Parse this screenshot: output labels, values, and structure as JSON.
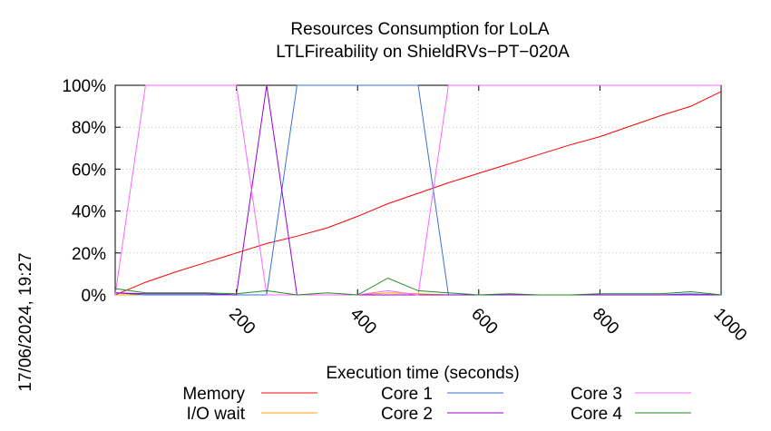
{
  "chart_data": {
    "type": "line",
    "title": [
      "Resources Consumption for LoLA",
      "LTLFireability on ShieldRVs−PT−020A"
    ],
    "xlabel": "Execution time (seconds)",
    "ylabel": "",
    "timestamp": "17/06/2024, 19:27",
    "xlim": [
      0,
      1000
    ],
    "ylim": [
      0,
      100
    ],
    "x_ticks": [
      200,
      400,
      600,
      800,
      1000
    ],
    "x_tick_labels": [
      "200",
      "400",
      "600",
      "800",
      "1000"
    ],
    "y_ticks": [
      0,
      20,
      40,
      60,
      80,
      100
    ],
    "y_tick_labels": [
      "0%",
      "20%",
      "40%",
      "60%",
      "80%",
      "100%"
    ],
    "grid": true,
    "legend_position": "bottom",
    "series": [
      {
        "name": "Memory",
        "color": "#ff0000",
        "x": [
          0,
          50,
          100,
          150,
          200,
          250,
          300,
          350,
          400,
          450,
          500,
          550,
          600,
          650,
          700,
          750,
          800,
          850,
          900,
          950,
          1000
        ],
        "y": [
          0,
          6,
          11,
          15.5,
          20,
          24.5,
          28,
          32,
          37.5,
          43.5,
          48.5,
          53.5,
          58,
          62.5,
          67,
          71.5,
          75.5,
          80.5,
          85.5,
          90,
          97
        ]
      },
      {
        "name": "I/O wait",
        "color": "#ffa500",
        "x": [
          0,
          50,
          100,
          150,
          200,
          250,
          300,
          350,
          400,
          450,
          500,
          550,
          600,
          650,
          700,
          750,
          800,
          850,
          900,
          950,
          1000
        ],
        "y": [
          0,
          0,
          0,
          0,
          0,
          0,
          0,
          0,
          0,
          1,
          0.5,
          0,
          0,
          0,
          0,
          0,
          0,
          0,
          0,
          0,
          0
        ]
      },
      {
        "name": "Core 1",
        "color": "#3a6fd6",
        "x": [
          0,
          50,
          100,
          150,
          200,
          250,
          300,
          350,
          400,
          450,
          500,
          550,
          600,
          650,
          700,
          750,
          800,
          850,
          900,
          950,
          1000
        ],
        "y": [
          1,
          0,
          0,
          0,
          0,
          0,
          100,
          100,
          100,
          100,
          100,
          0,
          0,
          0,
          0,
          0,
          0,
          0,
          0,
          0.5,
          0
        ]
      },
      {
        "name": "Core 2",
        "color": "#9400d3",
        "x": [
          0,
          50,
          100,
          150,
          200,
          250,
          300,
          350,
          400,
          450,
          500,
          550,
          600,
          650,
          700,
          750,
          800,
          850,
          900,
          950,
          1000
        ],
        "y": [
          1,
          0.5,
          0.5,
          0.5,
          0,
          100,
          0,
          0,
          0,
          0,
          0,
          0,
          0,
          0,
          0,
          0,
          0,
          0,
          0,
          0,
          0
        ]
      },
      {
        "name": "Core 3",
        "color": "#ff66ff",
        "x": [
          0,
          50,
          100,
          150,
          200,
          250,
          300,
          350,
          400,
          450,
          500,
          550,
          600,
          650,
          700,
          750,
          800,
          850,
          900,
          950,
          1000
        ],
        "y": [
          0,
          100,
          100,
          100,
          100,
          0,
          0,
          0,
          0,
          2,
          0,
          100,
          100,
          100,
          100,
          100,
          100,
          100,
          100,
          100,
          100
        ]
      },
      {
        "name": "Core 4",
        "color": "#228b22",
        "x": [
          0,
          50,
          100,
          150,
          200,
          250,
          300,
          350,
          400,
          450,
          500,
          550,
          600,
          650,
          700,
          750,
          800,
          850,
          900,
          950,
          1000
        ],
        "y": [
          3,
          1,
          1,
          1,
          0.5,
          2,
          0,
          1,
          0,
          8,
          2,
          1,
          0,
          0.5,
          0,
          0,
          0.5,
          0.5,
          0.5,
          1.5,
          0
        ]
      }
    ]
  }
}
